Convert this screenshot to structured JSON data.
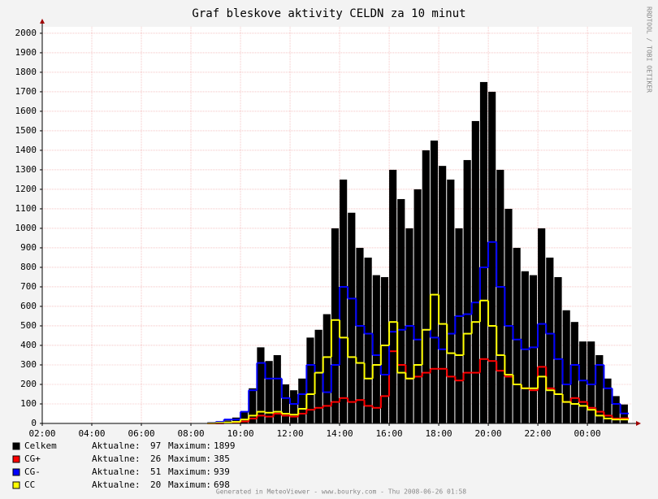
{
  "chart_data": {
    "type": "bar",
    "title": "Graf bleskove aktivity CELDN za 10 minut",
    "side_note": "RRDTOOL / TOBI OETIKER",
    "footer": "Generated in MeteoViewer - www.bourky.com - Thu 2008-06-26 01:58",
    "legend_current_label": "Aktualne:",
    "legend_max_label": "Maximum:",
    "grid": true,
    "xlim": [
      120,
      1548
    ],
    "xticks": [
      {
        "value": 120,
        "label": "02:00"
      },
      {
        "value": 240,
        "label": "04:00"
      },
      {
        "value": 360,
        "label": "06:00"
      },
      {
        "value": 480,
        "label": "08:00"
      },
      {
        "value": 600,
        "label": "10:00"
      },
      {
        "value": 720,
        "label": "12:00"
      },
      {
        "value": 840,
        "label": "14:00"
      },
      {
        "value": 960,
        "label": "16:00"
      },
      {
        "value": 1080,
        "label": "18:00"
      },
      {
        "value": 1200,
        "label": "20:00"
      },
      {
        "value": 1320,
        "label": "22:00"
      },
      {
        "value": 1440,
        "label": "00:00"
      }
    ],
    "ylim": [
      0,
      2033
    ],
    "yticks": [
      0,
      100,
      200,
      300,
      400,
      500,
      600,
      700,
      800,
      900,
      1000,
      1100,
      1200,
      1300,
      1400,
      1500,
      1600,
      1700,
      1800,
      1900,
      2000
    ],
    "x": [
      520,
      540,
      560,
      580,
      600,
      620,
      640,
      660,
      680,
      700,
      720,
      740,
      760,
      780,
      800,
      820,
      840,
      860,
      880,
      900,
      920,
      940,
      960,
      980,
      1000,
      1020,
      1040,
      1060,
      1080,
      1100,
      1120,
      1140,
      1160,
      1180,
      1200,
      1220,
      1240,
      1260,
      1280,
      1300,
      1320,
      1340,
      1360,
      1380,
      1400,
      1420,
      1440,
      1460,
      1480,
      1500,
      1520
    ],
    "series": [
      {
        "name": "Celkem",
        "color": "#000000",
        "style": "bar",
        "current": 97,
        "maximum": 1899,
        "values": [
          5,
          10,
          15,
          30,
          60,
          180,
          390,
          320,
          350,
          200,
          170,
          230,
          440,
          480,
          560,
          1000,
          1250,
          1080,
          900,
          850,
          760,
          750,
          1300,
          1150,
          1000,
          1200,
          1400,
          1450,
          1320,
          1250,
          1000,
          1350,
          1550,
          1750,
          1700,
          1300,
          1100,
          900,
          780,
          760,
          1000,
          850,
          750,
          580,
          520,
          420,
          420,
          350,
          230,
          140,
          97
        ]
      },
      {
        "name": "CG+",
        "color": "#ff0000",
        "style": "step",
        "current": 26,
        "maximum": 385,
        "values": [
          0,
          0,
          2,
          5,
          10,
          25,
          40,
          35,
          50,
          40,
          35,
          50,
          70,
          80,
          90,
          110,
          130,
          110,
          120,
          90,
          80,
          140,
          370,
          300,
          230,
          240,
          260,
          280,
          280,
          240,
          220,
          260,
          260,
          330,
          320,
          270,
          240,
          200,
          180,
          170,
          290,
          180,
          150,
          110,
          130,
          110,
          80,
          60,
          40,
          25,
          26
        ]
      },
      {
        "name": "CG-",
        "color": "#0000ff",
        "style": "step",
        "current": 51,
        "maximum": 939,
        "values": [
          3,
          8,
          20,
          20,
          60,
          170,
          310,
          230,
          230,
          130,
          100,
          150,
          300,
          260,
          160,
          300,
          700,
          640,
          500,
          460,
          350,
          250,
          470,
          480,
          500,
          430,
          480,
          440,
          380,
          460,
          550,
          560,
          620,
          800,
          930,
          700,
          500,
          430,
          380,
          390,
          510,
          460,
          330,
          200,
          300,
          220,
          200,
          300,
          180,
          100,
          51
        ]
      },
      {
        "name": "CC",
        "color": "#ffff00",
        "style": "step",
        "current": 20,
        "maximum": 698,
        "values": [
          1,
          3,
          5,
          8,
          20,
          40,
          60,
          55,
          60,
          50,
          45,
          75,
          150,
          260,
          340,
          530,
          440,
          340,
          310,
          230,
          300,
          400,
          520,
          260,
          230,
          300,
          480,
          660,
          510,
          360,
          350,
          460,
          520,
          630,
          500,
          350,
          250,
          200,
          180,
          180,
          240,
          170,
          150,
          110,
          100,
          90,
          70,
          40,
          25,
          20,
          20
        ]
      }
    ]
  }
}
